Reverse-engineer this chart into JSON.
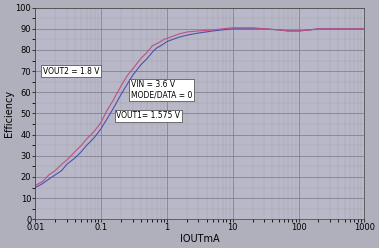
{
  "title": "",
  "xlabel": "IOUTmA",
  "ylabel": "Efficiency",
  "xlim": [
    0.01,
    1000
  ],
  "ylim": [
    0,
    100
  ],
  "yticks": [
    0,
    10,
    20,
    30,
    40,
    50,
    60,
    70,
    80,
    90,
    100
  ],
  "xtick_labels": [
    "0.01",
    "0.1",
    "1",
    "10",
    "100",
    "1000"
  ],
  "xtick_values": [
    0.01,
    0.1,
    1,
    10,
    100,
    1000
  ],
  "fig_bg_color": "#b0b0bc",
  "ax_bg_color": "#b8b8c8",
  "annotation_vin": "VIN = 3.6 V\nMODE/DATA = 0",
  "annotation_vout2": "VOUT2 = 1.8 V",
  "annotation_vout1": "VOUT1= 1.575 V",
  "curve1_x": [
    0.01,
    0.013,
    0.016,
    0.02,
    0.025,
    0.03,
    0.04,
    0.05,
    0.06,
    0.07,
    0.08,
    0.09,
    0.1,
    0.12,
    0.15,
    0.2,
    0.25,
    0.3,
    0.4,
    0.5,
    0.6,
    0.7,
    0.8,
    0.9,
    1.0,
    1.5,
    2.0,
    3.0,
    5.0,
    7.0,
    10,
    15,
    20,
    30,
    50,
    70,
    100,
    150,
    200,
    300,
    500,
    700,
    1000
  ],
  "curve1_y": [
    15,
    17,
    19,
    21,
    23,
    26,
    29,
    32,
    35,
    37,
    39,
    41,
    43,
    47,
    52,
    59,
    64,
    68,
    73,
    76,
    79,
    81,
    82,
    83,
    84,
    86,
    87,
    88,
    89,
    89.5,
    90,
    90,
    90,
    90,
    89.5,
    89,
    89,
    89.5,
    90,
    90,
    90,
    90,
    90
  ],
  "curve2_x": [
    0.01,
    0.013,
    0.016,
    0.02,
    0.025,
    0.03,
    0.04,
    0.05,
    0.06,
    0.07,
    0.08,
    0.09,
    0.1,
    0.12,
    0.15,
    0.2,
    0.25,
    0.3,
    0.4,
    0.5,
    0.6,
    0.7,
    0.8,
    0.9,
    1.0,
    1.5,
    2.0,
    3.0,
    5.0,
    7.0,
    10,
    15,
    20,
    30,
    50,
    70,
    100,
    150,
    200,
    300,
    500,
    700,
    1000
  ],
  "curve2_y": [
    16,
    18,
    21,
    23,
    26,
    28,
    32,
    35,
    38,
    40,
    42,
    44,
    46,
    51,
    56,
    63,
    68,
    71,
    76,
    79,
    82,
    83,
    84,
    85,
    85.5,
    87.5,
    88.5,
    89,
    89.5,
    90,
    90.5,
    90.5,
    90.5,
    90,
    89.5,
    89,
    89,
    89.5,
    90,
    90,
    90,
    90,
    90
  ],
  "curve1_color": "#5050b0",
  "curve2_color": "#c05080",
  "grid_major_color": "#787888",
  "grid_minor_color": "#989898"
}
